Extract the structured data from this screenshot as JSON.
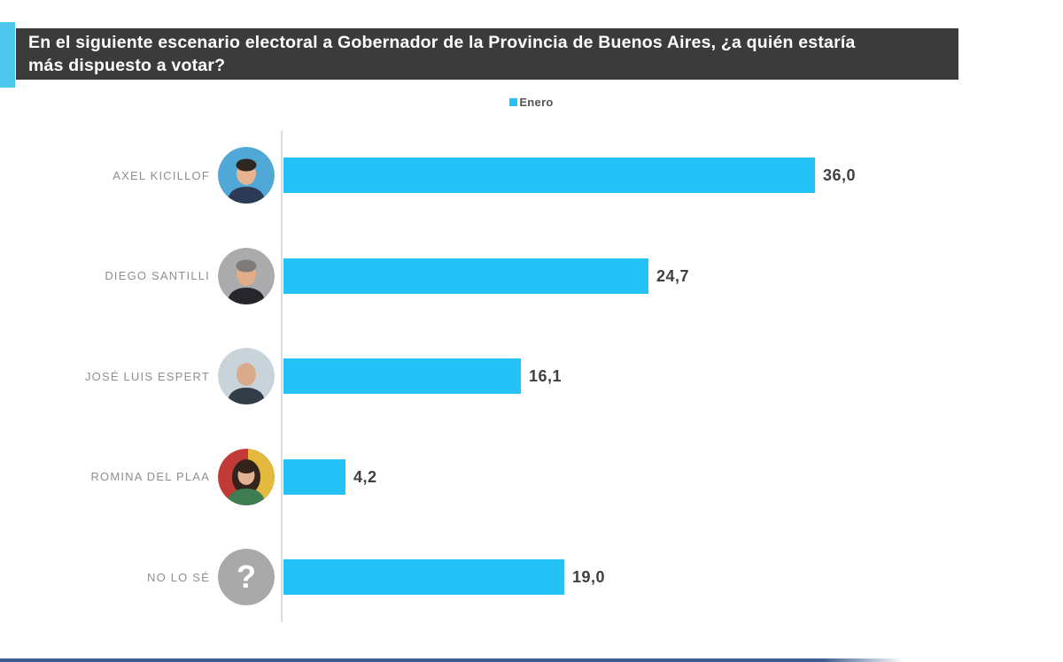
{
  "theme": {
    "header_bg": "#3B3B3B",
    "header_text": "#FFFFFF",
    "accent_tab": "#4FC8ED",
    "label_color": "#8F8F8F",
    "value_color": "#3F3F3F",
    "axis_color": "#DCDCDC",
    "question_bg": "#A9A9A9",
    "bottom_line": "#3D5B8E",
    "background": "#FFFFFF"
  },
  "header": {
    "title": "En el siguiente escenario electoral a Gobernador de la Provincia de Buenos Aires, ¿a quién estaría más dispuesto a votar?",
    "title_lines": [
      "En el siguiente escenario electoral a Gobernador de la Provincia de Buenos Aires, ¿a quién estaría",
      "más dispuesto a votar?"
    ]
  },
  "chart_data": {
    "type": "bar",
    "orientation": "horizontal",
    "title": "En el siguiente escenario electoral a Gobernador de la Provincia de Buenos Aires, ¿a quién estaría más dispuesto a votar?",
    "series_name": "Enero",
    "legend_position": "top-center",
    "grid": false,
    "xlim": [
      0,
      43
    ],
    "bar_color": "#24C2F6",
    "categories": [
      "AXEL KICILLOF",
      "DIEGO SANTILLI",
      "JOSÉ LUIS ESPERT",
      "ROMINA DEL PLAA",
      "NO LO SÉ"
    ],
    "values": [
      36.0,
      24.7,
      16.1,
      4.2,
      19.0
    ],
    "value_labels": [
      "36,0",
      "24,7",
      "16,1",
      "4,2",
      "19,0"
    ],
    "avatars": [
      {
        "style": "photo",
        "hair": "short",
        "bg": "#4FA8D6",
        "skin": "#E6B48E",
        "hair_color": "#2E2620",
        "shirt": "#2B3A55"
      },
      {
        "style": "photo",
        "hair": "short",
        "bg": "#A9ABAC",
        "skin": "#E2AE89",
        "hair_color": "#7D7C78",
        "shirt": "#26262C"
      },
      {
        "style": "photo",
        "hair": "bald",
        "bg": "#C9D3DA",
        "skin": "#D9A98B",
        "hair_color": "#999999",
        "shirt": "#333C47"
      },
      {
        "style": "photo",
        "hair": "long",
        "bg": "#C23A35",
        "bg2": "#E3B93E",
        "skin": "#E2B294",
        "hair_color": "#33231B",
        "shirt": "#3E7D52"
      },
      {
        "style": "question",
        "glyph": "?",
        "bg": "#A9A9A9"
      }
    ]
  }
}
